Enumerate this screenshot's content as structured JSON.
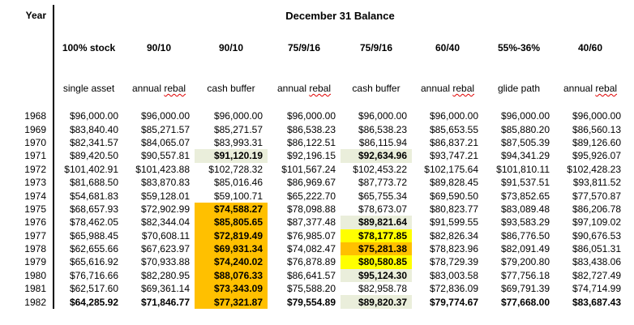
{
  "header": {
    "year_label": "Year",
    "title": "December 31 Balance"
  },
  "columns": [
    {
      "allocation": "100% stock",
      "strategy": "single asset",
      "strategy_misspelled": ""
    },
    {
      "allocation": "90/10",
      "strategy": "annual ",
      "strategy_misspelled": "rebal"
    },
    {
      "allocation": "90/10",
      "strategy": "cash buffer",
      "strategy_misspelled": ""
    },
    {
      "allocation": "75/9/16",
      "strategy": "annual ",
      "strategy_misspelled": "rebal"
    },
    {
      "allocation": "75/9/16",
      "strategy": "cash buffer",
      "strategy_misspelled": ""
    },
    {
      "allocation": "60/40",
      "strategy": "annual ",
      "strategy_misspelled": "rebal"
    },
    {
      "allocation": "55%-36%",
      "strategy": "glide path",
      "strategy_misspelled": ""
    },
    {
      "allocation": "40/60",
      "strategy": "annual ",
      "strategy_misspelled": "rebal"
    }
  ],
  "rows": [
    {
      "year": "1968",
      "values": [
        "$96,000.00",
        "$96,000.00",
        "$96,000.00",
        "$96,000.00",
        "$96,000.00",
        "$96,000.00",
        "$96,000.00",
        "$96,000.00"
      ],
      "highlights": [
        null,
        null,
        null,
        null,
        null,
        null,
        null,
        null
      ],
      "bold": false
    },
    {
      "year": "1969",
      "values": [
        "$83,840.40",
        "$85,271.57",
        "$85,271.57",
        "$86,538.23",
        "$86,538.23",
        "$85,653.55",
        "$85,880.20",
        "$86,560.13"
      ],
      "highlights": [
        null,
        null,
        null,
        null,
        null,
        null,
        null,
        null
      ],
      "bold": false
    },
    {
      "year": "1970",
      "values": [
        "$82,341.57",
        "$84,065.07",
        "$83,993.31",
        "$86,122.51",
        "$86,115.94",
        "$86,837.21",
        "$87,505.39",
        "$89,126.60"
      ],
      "highlights": [
        null,
        null,
        null,
        null,
        null,
        null,
        null,
        null
      ],
      "bold": false
    },
    {
      "year": "1971",
      "values": [
        "$89,420.50",
        "$90,557.81",
        "$91,120.19",
        "$92,196.15",
        "$92,634.96",
        "$93,747.21",
        "$94,341.29",
        "$95,926.07"
      ],
      "highlights": [
        null,
        null,
        "green",
        null,
        "green",
        null,
        null,
        null
      ],
      "bold": false
    },
    {
      "year": "1972",
      "values": [
        "$101,402.91",
        "$101,423.88",
        "$102,728.32",
        "$101,567.24",
        "$102,453.22",
        "$102,175.64",
        "$101,810.11",
        "$102,428.23"
      ],
      "highlights": [
        null,
        null,
        null,
        null,
        null,
        null,
        null,
        null
      ],
      "bold": false
    },
    {
      "year": "1973",
      "values": [
        "$81,688.50",
        "$83,870.83",
        "$85,016.46",
        "$86,969.67",
        "$87,773.72",
        "$89,828.45",
        "$91,537.51",
        "$93,811.52"
      ],
      "highlights": [
        null,
        null,
        null,
        null,
        null,
        null,
        null,
        null
      ],
      "bold": false
    },
    {
      "year": "1974",
      "values": [
        "$54,681.83",
        "$59,128.01",
        "$59,100.71",
        "$65,222.70",
        "$65,755.34",
        "$69,590.50",
        "$73,852.65",
        "$77,570.87"
      ],
      "highlights": [
        null,
        null,
        null,
        null,
        null,
        null,
        null,
        null
      ],
      "bold": false
    },
    {
      "year": "1975",
      "values": [
        "$68,657.93",
        "$72,902.99",
        "$74,588.27",
        "$78,098.88",
        "$78,673.07",
        "$80,823.77",
        "$83,089.48",
        "$86,206.78"
      ],
      "highlights": [
        null,
        null,
        "orange",
        null,
        null,
        null,
        null,
        null
      ],
      "bold": false
    },
    {
      "year": "1976",
      "values": [
        "$78,462.05",
        "$82,344.04",
        "$85,805.65",
        "$87,377.48",
        "$89,821.64",
        "$91,599.55",
        "$93,583.29",
        "$97,109.02"
      ],
      "highlights": [
        null,
        null,
        "orange",
        null,
        "green",
        null,
        null,
        null
      ],
      "bold": false
    },
    {
      "year": "1977",
      "values": [
        "$65,988.45",
        "$70,608.11",
        "$72,819.49",
        "$76,985.07",
        "$78,177.85",
        "$82,826.34",
        "$86,776.50",
        "$90,676.53"
      ],
      "highlights": [
        null,
        null,
        "orange",
        null,
        "yellow",
        null,
        null,
        null
      ],
      "bold": false
    },
    {
      "year": "1978",
      "values": [
        "$62,655.66",
        "$67,623.97",
        "$69,931.34",
        "$74,082.47",
        "$75,281.38",
        "$78,823.96",
        "$82,091.49",
        "$86,051.31"
      ],
      "highlights": [
        null,
        null,
        "orange",
        null,
        "orange",
        null,
        null,
        null
      ],
      "bold": false
    },
    {
      "year": "1979",
      "values": [
        "$65,616.92",
        "$70,933.88",
        "$74,240.02",
        "$76,878.89",
        "$80,580.85",
        "$78,729.39",
        "$79,200.80",
        "$83,438.06"
      ],
      "highlights": [
        null,
        null,
        "orange",
        null,
        "yellow",
        null,
        null,
        null
      ],
      "bold": false
    },
    {
      "year": "1980",
      "values": [
        "$76,716.66",
        "$82,280.95",
        "$88,076.33",
        "$86,641.57",
        "$95,124.30",
        "$83,003.58",
        "$77,756.18",
        "$82,727.49"
      ],
      "highlights": [
        null,
        null,
        "orange",
        null,
        "green",
        null,
        null,
        null
      ],
      "bold": false
    },
    {
      "year": "1981",
      "values": [
        "$62,517.60",
        "$69,361.14",
        "$73,343.09",
        "$75,588.20",
        "$82,958.78",
        "$72,836.09",
        "$69,791.39",
        "$74,714.99"
      ],
      "highlights": [
        null,
        null,
        "orange",
        null,
        null,
        null,
        null,
        null
      ],
      "bold": false
    },
    {
      "year": "1982",
      "values": [
        "$64,285.92",
        "$71,846.77",
        "$77,321.87",
        "$79,554.89",
        "$89,820.37",
        "$79,774.67",
        "$77,668.00",
        "$83,687.43"
      ],
      "highlights": [
        null,
        null,
        "orange",
        null,
        "green",
        null,
        null,
        null
      ],
      "bold": true
    }
  ],
  "colors": {
    "hl-orange": "#FFC000",
    "hl-yellow": "#FFFF00",
    "hl-green": "#EAEEDB",
    "squiggle-red": "#E00000",
    "divider-black": "#000000"
  }
}
